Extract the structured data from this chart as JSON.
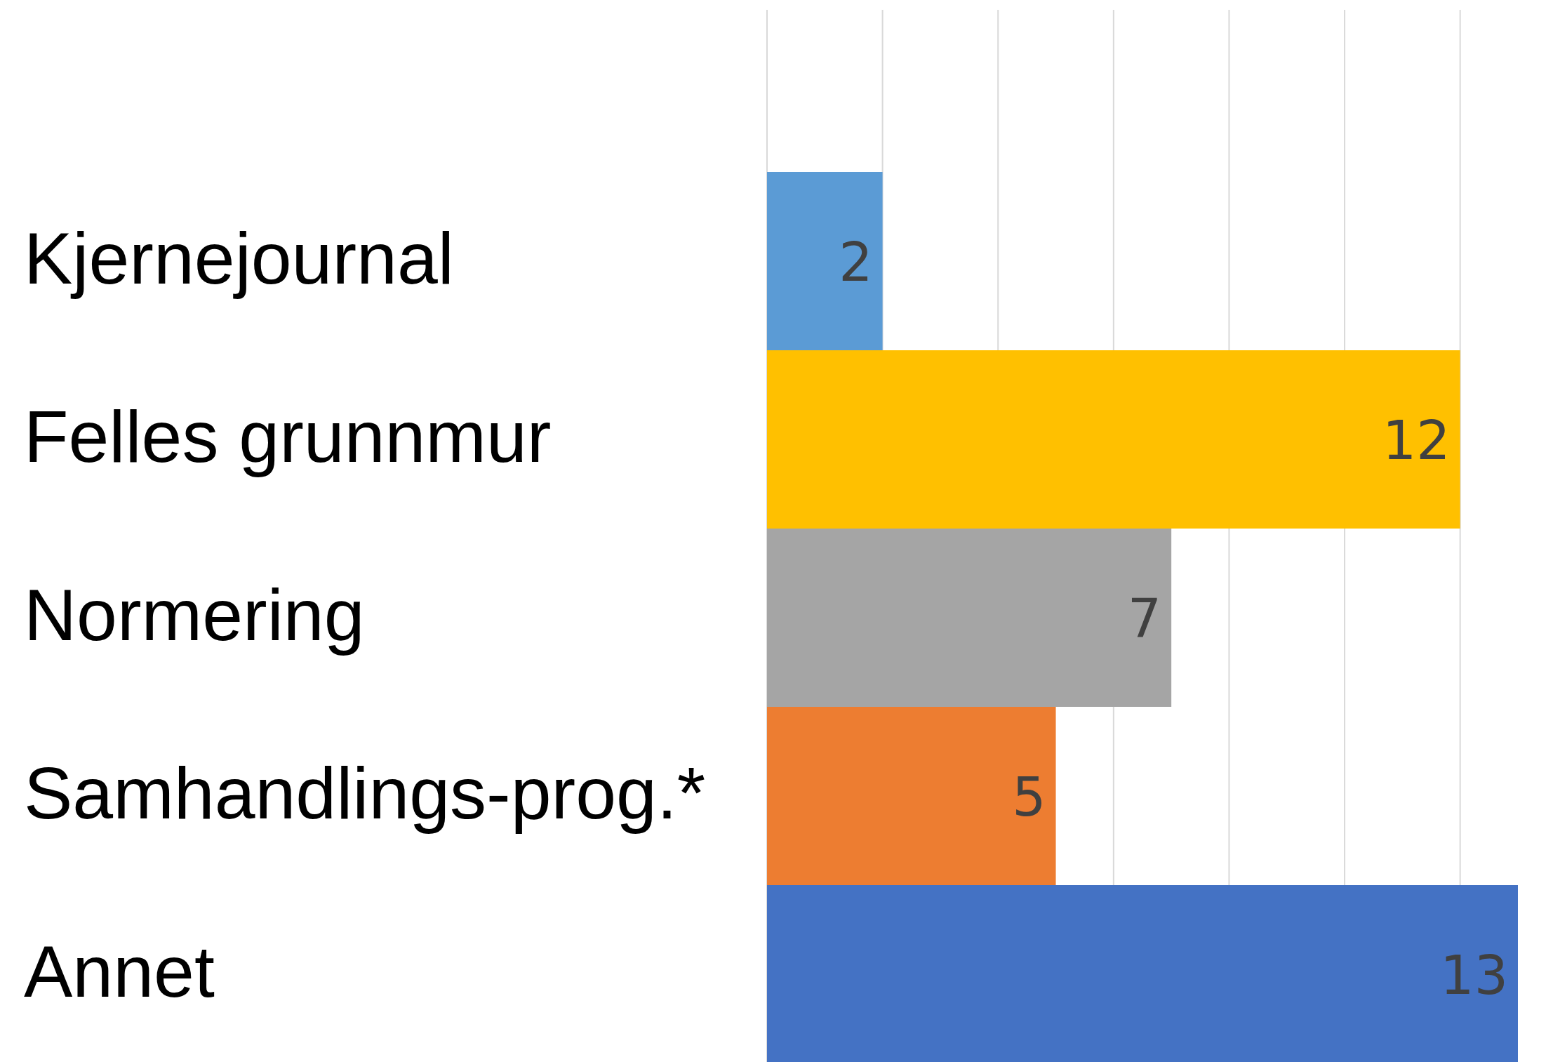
{
  "chart_data": {
    "type": "bar",
    "orientation": "horizontal",
    "categories": [
      "Kjernejournal",
      "Felles grunnmur",
      "Normering",
      "Samhandlings-prog.*",
      "Annet"
    ],
    "values": [
      2,
      12,
      7,
      5,
      13
    ],
    "colors": [
      "#5b9bd5",
      "#ffc000",
      "#a5a5a5",
      "#ed7d31",
      "#4472c4"
    ],
    "xlim": [
      0,
      13
    ],
    "xticks": [
      {
        "value": 0,
        "label": null
      },
      {
        "value": 2,
        "label": null
      },
      {
        "value": 4,
        "label": null
      },
      {
        "value": 6,
        "label": null
      },
      {
        "value": 8,
        "label": null
      },
      {
        "value": 10,
        "label": null
      },
      {
        "value": 12,
        "label": null
      }
    ],
    "tick_labels": "y",
    "grid": "x",
    "data_labels": true
  }
}
